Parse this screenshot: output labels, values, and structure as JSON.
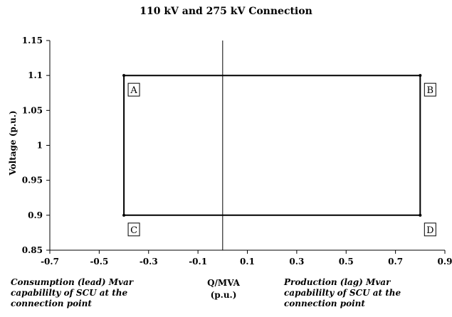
{
  "chart_data": {
    "type": "line",
    "title": "110 kV and 275 kV Connection",
    "ylabel": "Voltage (p.u.)",
    "xlabel_lines": [
      "Q/MVA",
      "(p.u.)"
    ],
    "xlim": [
      -0.7,
      0.9
    ],
    "ylim": [
      0.85,
      1.15
    ],
    "x_ticks": [
      "-0.7",
      "-0.5",
      "-0.3",
      "-0.1",
      "0.1",
      "0.3",
      "0.5",
      "0.7",
      "0.9"
    ],
    "x_tick_values": [
      -0.7,
      -0.5,
      -0.3,
      -0.1,
      0.1,
      0.3,
      0.5,
      0.7,
      0.9
    ],
    "y_ticks": [
      "0.85",
      "0.9",
      "0.95",
      "1",
      "1.05",
      "1.1",
      "1.15"
    ],
    "y_tick_values": [
      0.85,
      0.9,
      0.95,
      1.0,
      1.05,
      1.1,
      1.15
    ],
    "grid": false,
    "vertical_line_x": 0,
    "series": [
      {
        "x": [
          -0.4,
          0.8,
          0.8,
          -0.4,
          -0.4
        ],
        "y": [
          1.1,
          1.1,
          0.9,
          0.9,
          1.1
        ]
      }
    ],
    "points": [
      {
        "label": "A",
        "x": -0.4,
        "y": 1.1
      },
      {
        "label": "B",
        "x": 0.8,
        "y": 1.1
      },
      {
        "label": "C",
        "x": -0.4,
        "y": 0.9
      },
      {
        "label": "D",
        "x": 0.8,
        "y": 0.9
      }
    ],
    "annotations": {
      "left": "Consumption (lead) Mvar capabililty of SCU at the connection point",
      "right": "Production (lag) Mvar capabililty of SCU at the connection point"
    },
    "colors": {
      "line": "#000000",
      "box_border": "#000000"
    }
  }
}
